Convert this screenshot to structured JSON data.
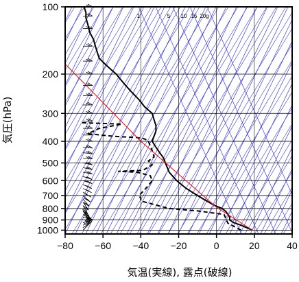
{
  "chart_data": {
    "type": "line",
    "title": "",
    "xlabel": "気温(実線), 露点(破線)",
    "ylabel": "気圧(hPa)",
    "x_scale": "linear",
    "y_scale": "log",
    "y_inverted": true,
    "xlim": [
      -80,
      40
    ],
    "ylim": [
      1040,
      100
    ],
    "x_ticks": [
      -80,
      -60,
      -40,
      -20,
      0,
      20,
      40
    ],
    "x_tick_labels": [
      "−80",
      "−60",
      "−40",
      "−20",
      "0",
      "20",
      "40"
    ],
    "y_ticks": [
      100,
      200,
      300,
      400,
      500,
      600,
      700,
      800,
      900,
      1000
    ],
    "y_tick_labels": [
      "100",
      "200",
      "300",
      "400",
      "500",
      "600",
      "700",
      "800",
      "900",
      "1000"
    ],
    "grid": true,
    "series": [
      {
        "role": "temperature",
        "style": "solid",
        "color": "#000000",
        "points": [
          [
            19,
            1000
          ],
          [
            16,
            975
          ],
          [
            13,
            950
          ],
          [
            9,
            925
          ],
          [
            7,
            900
          ],
          [
            7,
            875
          ],
          [
            6,
            850
          ],
          [
            5,
            825
          ],
          [
            3,
            800
          ],
          [
            -1,
            775
          ],
          [
            -4,
            750
          ],
          [
            -7,
            725
          ],
          [
            -10,
            700
          ],
          [
            -13,
            675
          ],
          [
            -16,
            650
          ],
          [
            -19,
            620
          ],
          [
            -21,
            600
          ],
          [
            -23,
            575
          ],
          [
            -25,
            550
          ],
          [
            -26,
            525
          ],
          [
            -27,
            500
          ],
          [
            -28,
            475
          ],
          [
            -30,
            450
          ],
          [
            -32,
            425
          ],
          [
            -34,
            400
          ],
          [
            -33,
            380
          ],
          [
            -32,
            360
          ],
          [
            -32,
            340
          ],
          [
            -33,
            320
          ],
          [
            -34,
            300
          ],
          [
            -38,
            280
          ],
          [
            -41,
            260
          ],
          [
            -43,
            250
          ],
          [
            -45,
            240
          ],
          [
            -48,
            225
          ],
          [
            -51,
            210
          ],
          [
            -53,
            200
          ],
          [
            -56,
            190
          ],
          [
            -59,
            180
          ],
          [
            -62,
            170
          ],
          [
            -63,
            160
          ],
          [
            -64,
            150
          ],
          [
            -65,
            140
          ],
          [
            -67,
            130
          ],
          [
            -68,
            120
          ],
          [
            -69,
            112
          ],
          [
            -69,
            106
          ],
          [
            -70,
            100
          ]
        ]
      },
      {
        "role": "dewpoint",
        "style": "dashed",
        "color": "#000000",
        "points": [
          [
            13,
            1000
          ],
          [
            6,
            930
          ],
          [
            4,
            850
          ],
          [
            -10,
            820
          ],
          [
            -25,
            800
          ],
          [
            -30,
            780
          ],
          [
            -40,
            740
          ],
          [
            -40,
            720
          ],
          [
            -41,
            700
          ],
          [
            -38,
            660
          ],
          [
            -36,
            630
          ],
          [
            -34,
            600
          ],
          [
            -35,
            570
          ],
          [
            -42,
            550
          ],
          [
            -52,
            545
          ],
          [
            -39,
            540
          ],
          [
            -34,
            510
          ],
          [
            -36,
            490
          ],
          [
            -33,
            470
          ],
          [
            -34,
            440
          ],
          [
            -35,
            420
          ],
          [
            -36,
            400
          ],
          [
            -38,
            390
          ],
          [
            -42,
            385
          ],
          [
            -54,
            380
          ],
          [
            -68,
            370
          ],
          [
            -62,
            350
          ],
          [
            -50,
            335
          ],
          [
            -72,
            330
          ]
        ]
      },
      {
        "role": "reference",
        "style": "solid",
        "color": "#ff0000",
        "points": [
          [
            19,
            1000
          ],
          [
            0,
            790
          ],
          [
            -40,
            400
          ],
          [
            -70,
            220
          ],
          [
            -80,
            180
          ]
        ]
      }
    ],
    "wind_barbs": [
      {
        "p": 1000,
        "u": -5,
        "v": -5
      },
      {
        "p": 975,
        "u": -6,
        "v": -4
      },
      {
        "p": 950,
        "u": -7,
        "v": -3
      },
      {
        "p": 925,
        "u": -8,
        "v": -2
      },
      {
        "p": 900,
        "u": -8,
        "v": 0
      },
      {
        "p": 875,
        "u": -8,
        "v": 2
      },
      {
        "p": 850,
        "u": -7,
        "v": 4
      },
      {
        "p": 825,
        "u": -6,
        "v": 5
      },
      {
        "p": 800,
        "u": -5,
        "v": 6
      },
      {
        "p": 775,
        "u": -4,
        "v": 7
      },
      {
        "p": 750,
        "u": -5,
        "v": 7
      },
      {
        "p": 725,
        "u": -6,
        "v": 7
      },
      {
        "p": 700,
        "u": -7,
        "v": 6
      },
      {
        "p": 675,
        "u": -8,
        "v": 5
      },
      {
        "p": 650,
        "u": -8,
        "v": 4
      },
      {
        "p": 625,
        "u": -9,
        "v": 4
      },
      {
        "p": 600,
        "u": -9,
        "v": 3
      },
      {
        "p": 575,
        "u": -9,
        "v": 3
      },
      {
        "p": 550,
        "u": -10,
        "v": 2
      },
      {
        "p": 525,
        "u": -10,
        "v": 2
      },
      {
        "p": 500,
        "u": -10,
        "v": 2
      },
      {
        "p": 475,
        "u": -10,
        "v": 1
      },
      {
        "p": 450,
        "u": -10,
        "v": 1
      },
      {
        "p": 425,
        "u": -10,
        "v": 1
      },
      {
        "p": 400,
        "u": -10,
        "v": 0
      },
      {
        "p": 375,
        "u": -10,
        "v": 0
      },
      {
        "p": 350,
        "u": -10,
        "v": 0
      },
      {
        "p": 325,
        "u": -10,
        "v": 0
      },
      {
        "p": 300,
        "u": -10,
        "v": 0
      },
      {
        "p": 275,
        "u": -10,
        "v": 0
      },
      {
        "p": 250,
        "u": -10,
        "v": 0
      },
      {
        "p": 225,
        "u": -10,
        "v": 0
      },
      {
        "p": 200,
        "u": -10,
        "v": 0
      },
      {
        "p": 175,
        "u": -10,
        "v": 0
      },
      {
        "p": 150,
        "u": -10,
        "v": 0
      },
      {
        "p": 125,
        "u": -10,
        "v": 0
      },
      {
        "p": 110,
        "u": -10,
        "v": 0
      },
      {
        "p": 100,
        "u": -10,
        "v": 0
      }
    ],
    "mixing_ratio_labels": [
      "1",
      "5",
      "10",
      "15",
      "20g"
    ],
    "mixing_ratio_values": [
      1,
      5,
      10,
      15,
      20
    ]
  }
}
